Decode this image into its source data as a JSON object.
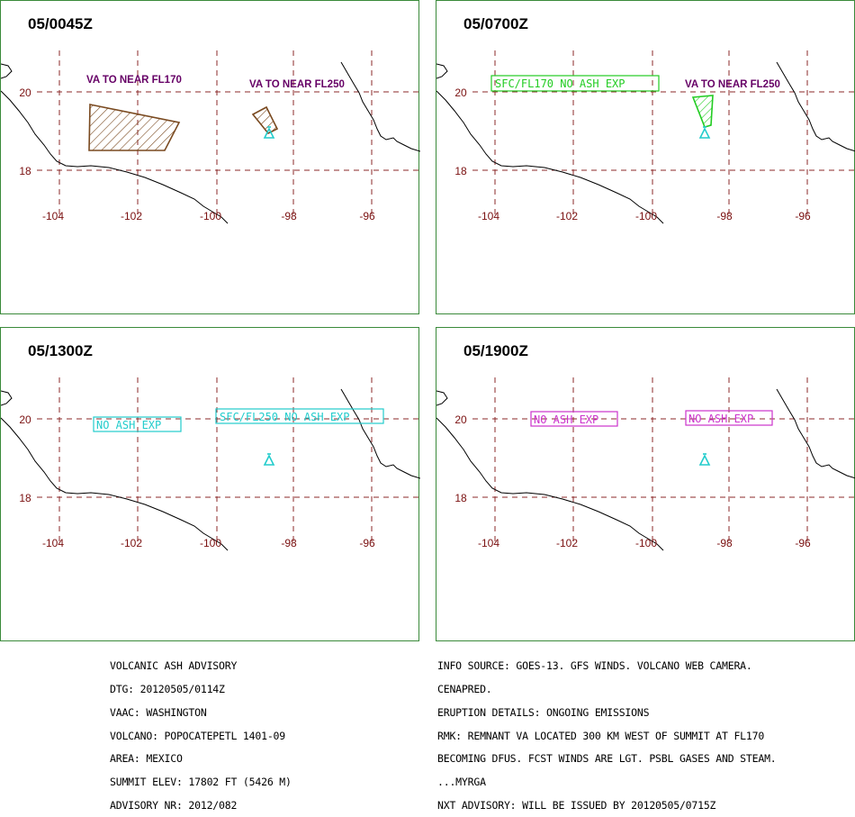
{
  "colors": {
    "border": "#3a8a3a",
    "grid": "#8b2a2a",
    "coast": "#000000",
    "tick_label": "#7a1010",
    "va_label": "#660066",
    "ash_brown": "#7a4a20",
    "ash_green": "#22cc22",
    "cyan": "#22cccc",
    "magenta": "#cc33cc"
  },
  "panels": [
    {
      "time": "05/0045Z",
      "lon_labels": [
        "-104",
        "-102",
        "-100",
        "-98",
        "-96"
      ],
      "lat_labels": [
        "20",
        "18"
      ],
      "annotations": [
        {
          "text": "VA TO NEAR FL170",
          "style": "va"
        },
        {
          "text": "VA TO NEAR FL250",
          "style": "va"
        }
      ],
      "volcano_icon": "volcano-triangle-icon"
    },
    {
      "time": "05/0700Z",
      "lon_labels": [
        "-104",
        "-102",
        "-100",
        "-98",
        "-96"
      ],
      "lat_labels": [
        "20",
        "18"
      ],
      "annotations": [
        {
          "text": "SFC/FL170 NO ASH EXP",
          "style": "green-box"
        },
        {
          "text": "VA TO NEAR FL250",
          "style": "va"
        }
      ],
      "volcano_icon": "volcano-triangle-icon"
    },
    {
      "time": "05/1300Z",
      "lon_labels": [
        "-104",
        "-102",
        "-100",
        "-98",
        "-96"
      ],
      "lat_labels": [
        "20",
        "18"
      ],
      "annotations": [
        {
          "text": "NO ASH EXP",
          "style": "cyan-box"
        },
        {
          "text": "SFC/FL250 NO ASH EXP",
          "style": "cyan-box"
        }
      ],
      "volcano_icon": "volcano-triangle-icon"
    },
    {
      "time": "05/1900Z",
      "lon_labels": [
        "-104",
        "-102",
        "-100",
        "-98",
        "-96"
      ],
      "lat_labels": [
        "20",
        "18"
      ],
      "annotations": [
        {
          "text": "NO ASH EXP",
          "style": "magenta-box"
        },
        {
          "text": "NO ASH EXP",
          "style": "magenta-box"
        }
      ],
      "volcano_icon": "volcano-triangle-icon"
    }
  ],
  "advisory_left": [
    "VOLCANIC ASH ADVISORY",
    "DTG: 20120505/0114Z",
    "VAAC: WASHINGTON",
    "VOLCANO: POPOCATEPETL 1401-09",
    "AREA: MEXICO",
    "SUMMIT ELEV: 17802 FT (5426 M)",
    "ADVISORY NR: 2012/082"
  ],
  "advisory_right": [
    "INFO SOURCE: GOES-13. GFS WINDS. VOLCANO WEB CAMERA.",
    "CENAPRED.",
    "ERUPTION DETAILS: ONGOING EMISSIONS",
    "RMK: REMNANT VA LOCATED 300 KM WEST OF SUMMIT AT FL170",
    "BECOMING DFUS. FCST WINDS ARE LGT. PSBL GASES AND STEAM.",
    "...MYRGA",
    "NXT ADVISORY: WILL BE ISSUED BY 20120505/0715Z"
  ]
}
